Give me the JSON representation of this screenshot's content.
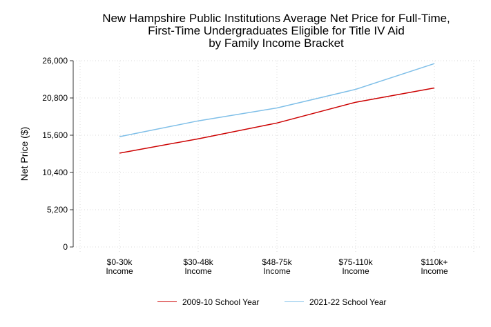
{
  "chart_data": {
    "type": "line",
    "title_lines": [
      "New Hampshire Public Institutions Average Net Price for Full-Time,",
      "First-Time Undergraduates Eligible for Title IV Aid",
      "by Family Income Bracket"
    ],
    "xlabel": "",
    "ylabel": "Net Price ($)",
    "categories": [
      [
        "$0-30k",
        "Income"
      ],
      [
        "$30-48k",
        "Income"
      ],
      [
        "$48-75k",
        "Income"
      ],
      [
        "$75-110k",
        "Income"
      ],
      [
        "$110k+",
        "Income"
      ]
    ],
    "ylim": [
      0,
      26000
    ],
    "yticks": [
      0,
      5200,
      10400,
      15600,
      20800,
      26000
    ],
    "ytick_labels": [
      "0",
      "5,200",
      "10,400",
      "15,600",
      "20,800",
      "26,000"
    ],
    "grid": true,
    "legend_position": "bottom",
    "series": [
      {
        "name": "2009-10 School Year",
        "color": "#cc0000",
        "values": [
          13100,
          15100,
          17300,
          20200,
          22200
        ]
      },
      {
        "name": "2021-22 School Year",
        "color": "#7fbfe8",
        "values": [
          15400,
          17600,
          19400,
          22000,
          25600
        ]
      }
    ]
  }
}
